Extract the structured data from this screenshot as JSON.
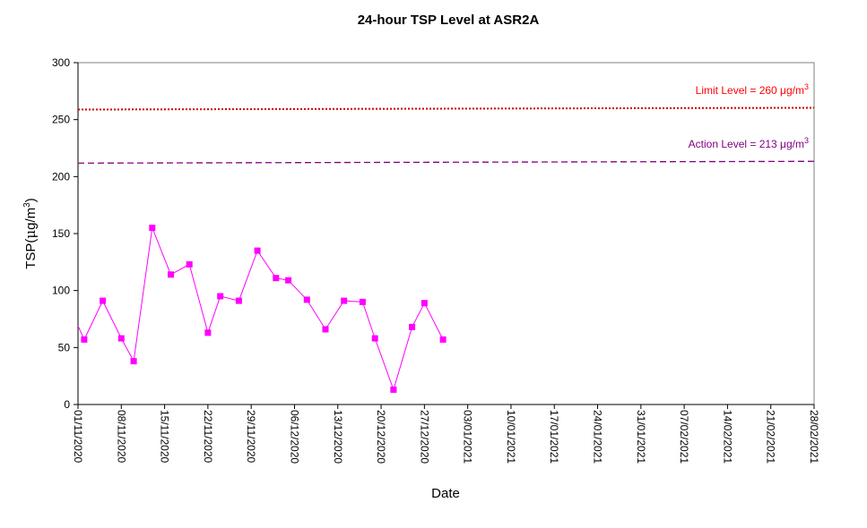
{
  "chart_data": {
    "type": "line",
    "title": "24-hour TSP Level at ASR2A",
    "xlabel": "Date",
    "ylabel": "TSP(μg/m3)",
    "ylabel_parts": {
      "base": "TSP(",
      "mu": "μ",
      "unit": "g/m",
      "sup": "3",
      "close": ")"
    },
    "ylim": [
      0,
      300
    ],
    "yticks": [
      0,
      50,
      100,
      150,
      200,
      250,
      300
    ],
    "xlim": [
      "2020-11-01",
      "2021-02-28"
    ],
    "xticks": [
      "01/11/2020",
      "08/11/2020",
      "15/11/2020",
      "22/11/2020",
      "29/11/2020",
      "06/12/2020",
      "13/12/2020",
      "20/12/2020",
      "27/12/2020",
      "03/01/2021",
      "10/01/2021",
      "17/01/2021",
      "24/01/2021",
      "31/01/2021",
      "07/02/2021",
      "14/02/2021",
      "21/02/2021",
      "28/02/2021"
    ],
    "grid": false,
    "series": [
      {
        "color": "#ff00ff",
        "points": [
          {
            "x": "2020-10-30",
            "y": 69
          },
          {
            "x": "2020-11-02",
            "y": 57
          },
          {
            "x": "2020-11-05",
            "y": 91
          },
          {
            "x": "2020-11-08",
            "y": 58
          },
          {
            "x": "2020-11-10",
            "y": 38
          },
          {
            "x": "2020-11-13",
            "y": 155
          },
          {
            "x": "2020-11-16",
            "y": 114
          },
          {
            "x": "2020-11-19",
            "y": 123
          },
          {
            "x": "2020-11-22",
            "y": 63
          },
          {
            "x": "2020-11-24",
            "y": 95
          },
          {
            "x": "2020-11-27",
            "y": 91
          },
          {
            "x": "2020-11-30",
            "y": 135
          },
          {
            "x": "2020-12-03",
            "y": 111
          },
          {
            "x": "2020-12-05",
            "y": 109
          },
          {
            "x": "2020-12-08",
            "y": 92
          },
          {
            "x": "2020-12-11",
            "y": 66
          },
          {
            "x": "2020-12-14",
            "y": 91
          },
          {
            "x": "2020-12-17",
            "y": 90
          },
          {
            "x": "2020-12-19",
            "y": 58
          },
          {
            "x": "2020-12-22",
            "y": 13
          },
          {
            "x": "2020-12-25",
            "y": 68
          },
          {
            "x": "2020-12-27",
            "y": 89
          },
          {
            "x": "2020-12-30",
            "y": 57
          }
        ]
      }
    ],
    "reference_lines": [
      {
        "label": "Limit Level  = 260 μg/m",
        "label_sup": "3",
        "y": 260,
        "color": "#ff0000",
        "line_color": "#cc0000",
        "style": "dotted"
      },
      {
        "label": "Action Level  = 213 μg/m",
        "label_sup": "3",
        "y": 213,
        "color": "#800080",
        "line_color": "#800080",
        "style": "dashed"
      }
    ]
  }
}
